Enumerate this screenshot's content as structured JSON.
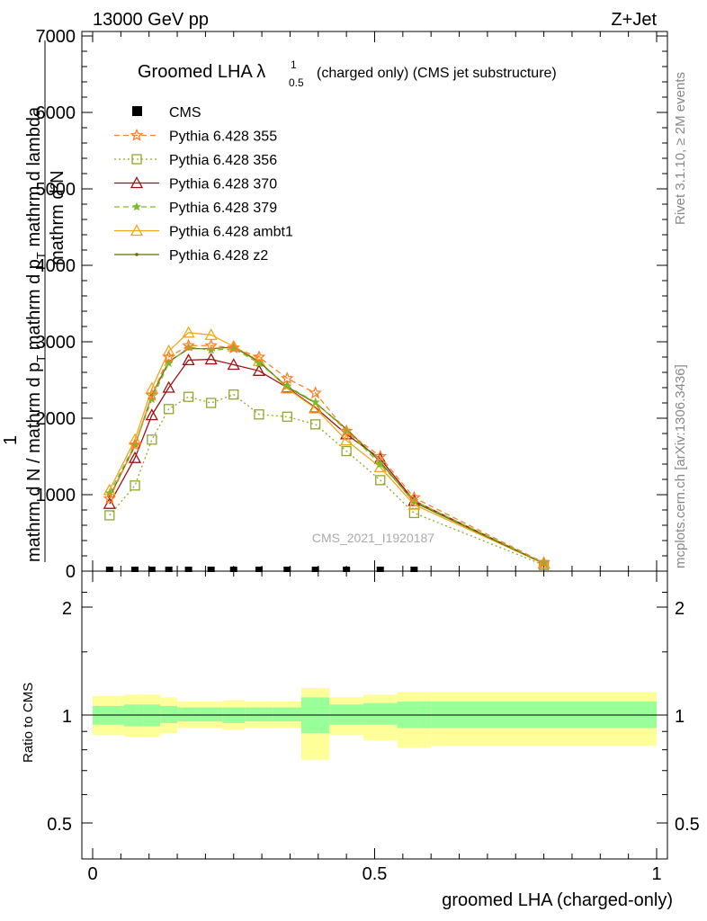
{
  "header": {
    "left": "13000 GeV pp",
    "right": "Z+Jet"
  },
  "side": {
    "rivet": "Rivet 3.1.10, ≥ 2M events",
    "mcplots": "mcplots.cern.ch [arXiv:1306.3436]"
  },
  "main": {
    "title_prefix": "Groomed LHA ",
    "title_lambda": "λ",
    "title_sup": "1",
    "title_sub": "0.5",
    "title_suffix": "  (charged only) (CMS jet substructure)",
    "ylabel_num": "mathrm d²N",
    "ylabel_den": "mathrm d N / mathrm d p",
    "ylabel_den_sub": "T",
    "ylabel_den_mid": " mathrm d p",
    "ylabel_den_sub2": "T",
    "ylabel_den_end": " mathrm d lambda",
    "ylabel_one": "1",
    "watermark": "CMS_2021_I1920187"
  },
  "ratio": {
    "ylabel": "Ratio to CMS"
  },
  "xlabel": "groomed LHA (charged-only)",
  "colors": {
    "p355": "#ff7f27",
    "p356": "#8fa82a",
    "p370": "#a01010",
    "p379": "#7cba2d",
    "ambt1": "#f0a818",
    "z2": "#6b6b00",
    "band_inner": "#99ff99",
    "band_outer": "#ffff99"
  },
  "chart_data": [
    {
      "type": "line",
      "title": "Groomed LHA λ^1_0.5 (charged only) (CMS jet substructure)",
      "xlabel": "groomed LHA (charged-only)",
      "xlim": [
        0,
        1
      ],
      "ylim": [
        0,
        7000
      ],
      "yticks": [
        0,
        1000,
        2000,
        3000,
        4000,
        5000,
        6000,
        7000
      ],
      "ytick_labels": [
        "0",
        "1000",
        "2000",
        "3000",
        "4000",
        "5000",
        "6000",
        "7000"
      ],
      "xticks": [
        0,
        0.5,
        1
      ],
      "xtick_labels": [
        "0",
        "0.5",
        "1"
      ],
      "legend_position": "top-left",
      "x": [
        0.03,
        0.075,
        0.105,
        0.135,
        0.17,
        0.21,
        0.25,
        0.295,
        0.345,
        0.395,
        0.45,
        0.51,
        0.57,
        0.8
      ],
      "series": [
        {
          "name": "CMS",
          "key": "cms",
          "marker": "square",
          "values": [
            0,
            0,
            0,
            0,
            0,
            0,
            0,
            0,
            0,
            0,
            0,
            0,
            0,
            null
          ]
        },
        {
          "name": "Pythia 6.428 355",
          "key": "p355",
          "marker": "star",
          "dash": "dashed",
          "values": [
            950,
            1650,
            2300,
            2800,
            2950,
            2950,
            2920,
            2800,
            2520,
            2330,
            1830,
            1500,
            960,
            110
          ]
        },
        {
          "name": "Pythia 6.428 356",
          "key": "p356",
          "marker": "open-square",
          "dash": "dotted",
          "values": [
            730,
            1120,
            1720,
            2120,
            2280,
            2200,
            2310,
            2050,
            2020,
            1920,
            1570,
            1190,
            760,
            80
          ]
        },
        {
          "name": "Pythia 6.428 370",
          "key": "p370",
          "marker": "open-triangle",
          "dash": "solid",
          "values": [
            880,
            1480,
            2040,
            2400,
            2760,
            2770,
            2700,
            2620,
            2400,
            2140,
            1790,
            1470,
            920,
            100
          ]
        },
        {
          "name": "Pythia 6.428 379",
          "key": "p379",
          "marker": "small-star",
          "dash": "dashed",
          "values": [
            1020,
            1660,
            2250,
            2720,
            2930,
            2890,
            2910,
            2720,
            2420,
            2210,
            1840,
            1400,
            920,
            105
          ]
        },
        {
          "name": "Pythia 6.428 ambt1",
          "key": "ambt1",
          "marker": "open-triangle",
          "dash": "solid",
          "values": [
            1060,
            1720,
            2390,
            2880,
            3120,
            3090,
            2940,
            2750,
            2390,
            2130,
            1710,
            1360,
            870,
            100
          ]
        },
        {
          "name": "Pythia 6.428 z2",
          "key": "z2",
          "marker": "dot",
          "dash": "solid",
          "values": [
            970,
            1640,
            2300,
            2740,
            2910,
            2910,
            2930,
            2740,
            2410,
            2200,
            1860,
            1430,
            900,
            100
          ]
        }
      ]
    },
    {
      "type": "area",
      "ylabel": "Ratio to CMS",
      "ylim": [
        0.4,
        2.4
      ],
      "yticks": [
        0.5,
        1,
        2
      ],
      "ytick_labels": [
        "0.5",
        "1",
        "2"
      ],
      "bins": [
        {
          "x0": 0.0,
          "x1": 0.055,
          "inner": [
            0.94,
            1.06
          ],
          "outer": [
            0.88,
            1.13
          ]
        },
        {
          "x0": 0.055,
          "x1": 0.09,
          "inner": [
            0.93,
            1.07
          ],
          "outer": [
            0.87,
            1.14
          ]
        },
        {
          "x0": 0.09,
          "x1": 0.12,
          "inner": [
            0.93,
            1.07
          ],
          "outer": [
            0.87,
            1.14
          ]
        },
        {
          "x0": 0.12,
          "x1": 0.15,
          "inner": [
            0.95,
            1.06
          ],
          "outer": [
            0.89,
            1.12
          ]
        },
        {
          "x0": 0.15,
          "x1": 0.19,
          "inner": [
            0.96,
            1.05
          ],
          "outer": [
            0.92,
            1.09
          ]
        },
        {
          "x0": 0.19,
          "x1": 0.23,
          "inner": [
            0.96,
            1.05
          ],
          "outer": [
            0.92,
            1.09
          ]
        },
        {
          "x0": 0.23,
          "x1": 0.27,
          "inner": [
            0.95,
            1.05
          ],
          "outer": [
            0.91,
            1.1
          ]
        },
        {
          "x0": 0.27,
          "x1": 0.32,
          "inner": [
            0.96,
            1.05
          ],
          "outer": [
            0.92,
            1.09
          ]
        },
        {
          "x0": 0.32,
          "x1": 0.37,
          "inner": [
            0.96,
            1.05
          ],
          "outer": [
            0.92,
            1.09
          ]
        },
        {
          "x0": 0.37,
          "x1": 0.42,
          "inner": [
            0.89,
            1.12
          ],
          "outer": [
            0.75,
            1.19
          ]
        },
        {
          "x0": 0.42,
          "x1": 0.48,
          "inner": [
            0.94,
            1.07
          ],
          "outer": [
            0.88,
            1.12
          ]
        },
        {
          "x0": 0.48,
          "x1": 0.54,
          "inner": [
            0.94,
            1.08
          ],
          "outer": [
            0.85,
            1.14
          ]
        },
        {
          "x0": 0.54,
          "x1": 0.6,
          "inner": [
            0.92,
            1.09
          ],
          "outer": [
            0.81,
            1.16
          ]
        },
        {
          "x0": 0.6,
          "x1": 1.0,
          "inner": [
            0.92,
            1.09
          ],
          "outer": [
            0.82,
            1.16
          ]
        }
      ]
    }
  ]
}
